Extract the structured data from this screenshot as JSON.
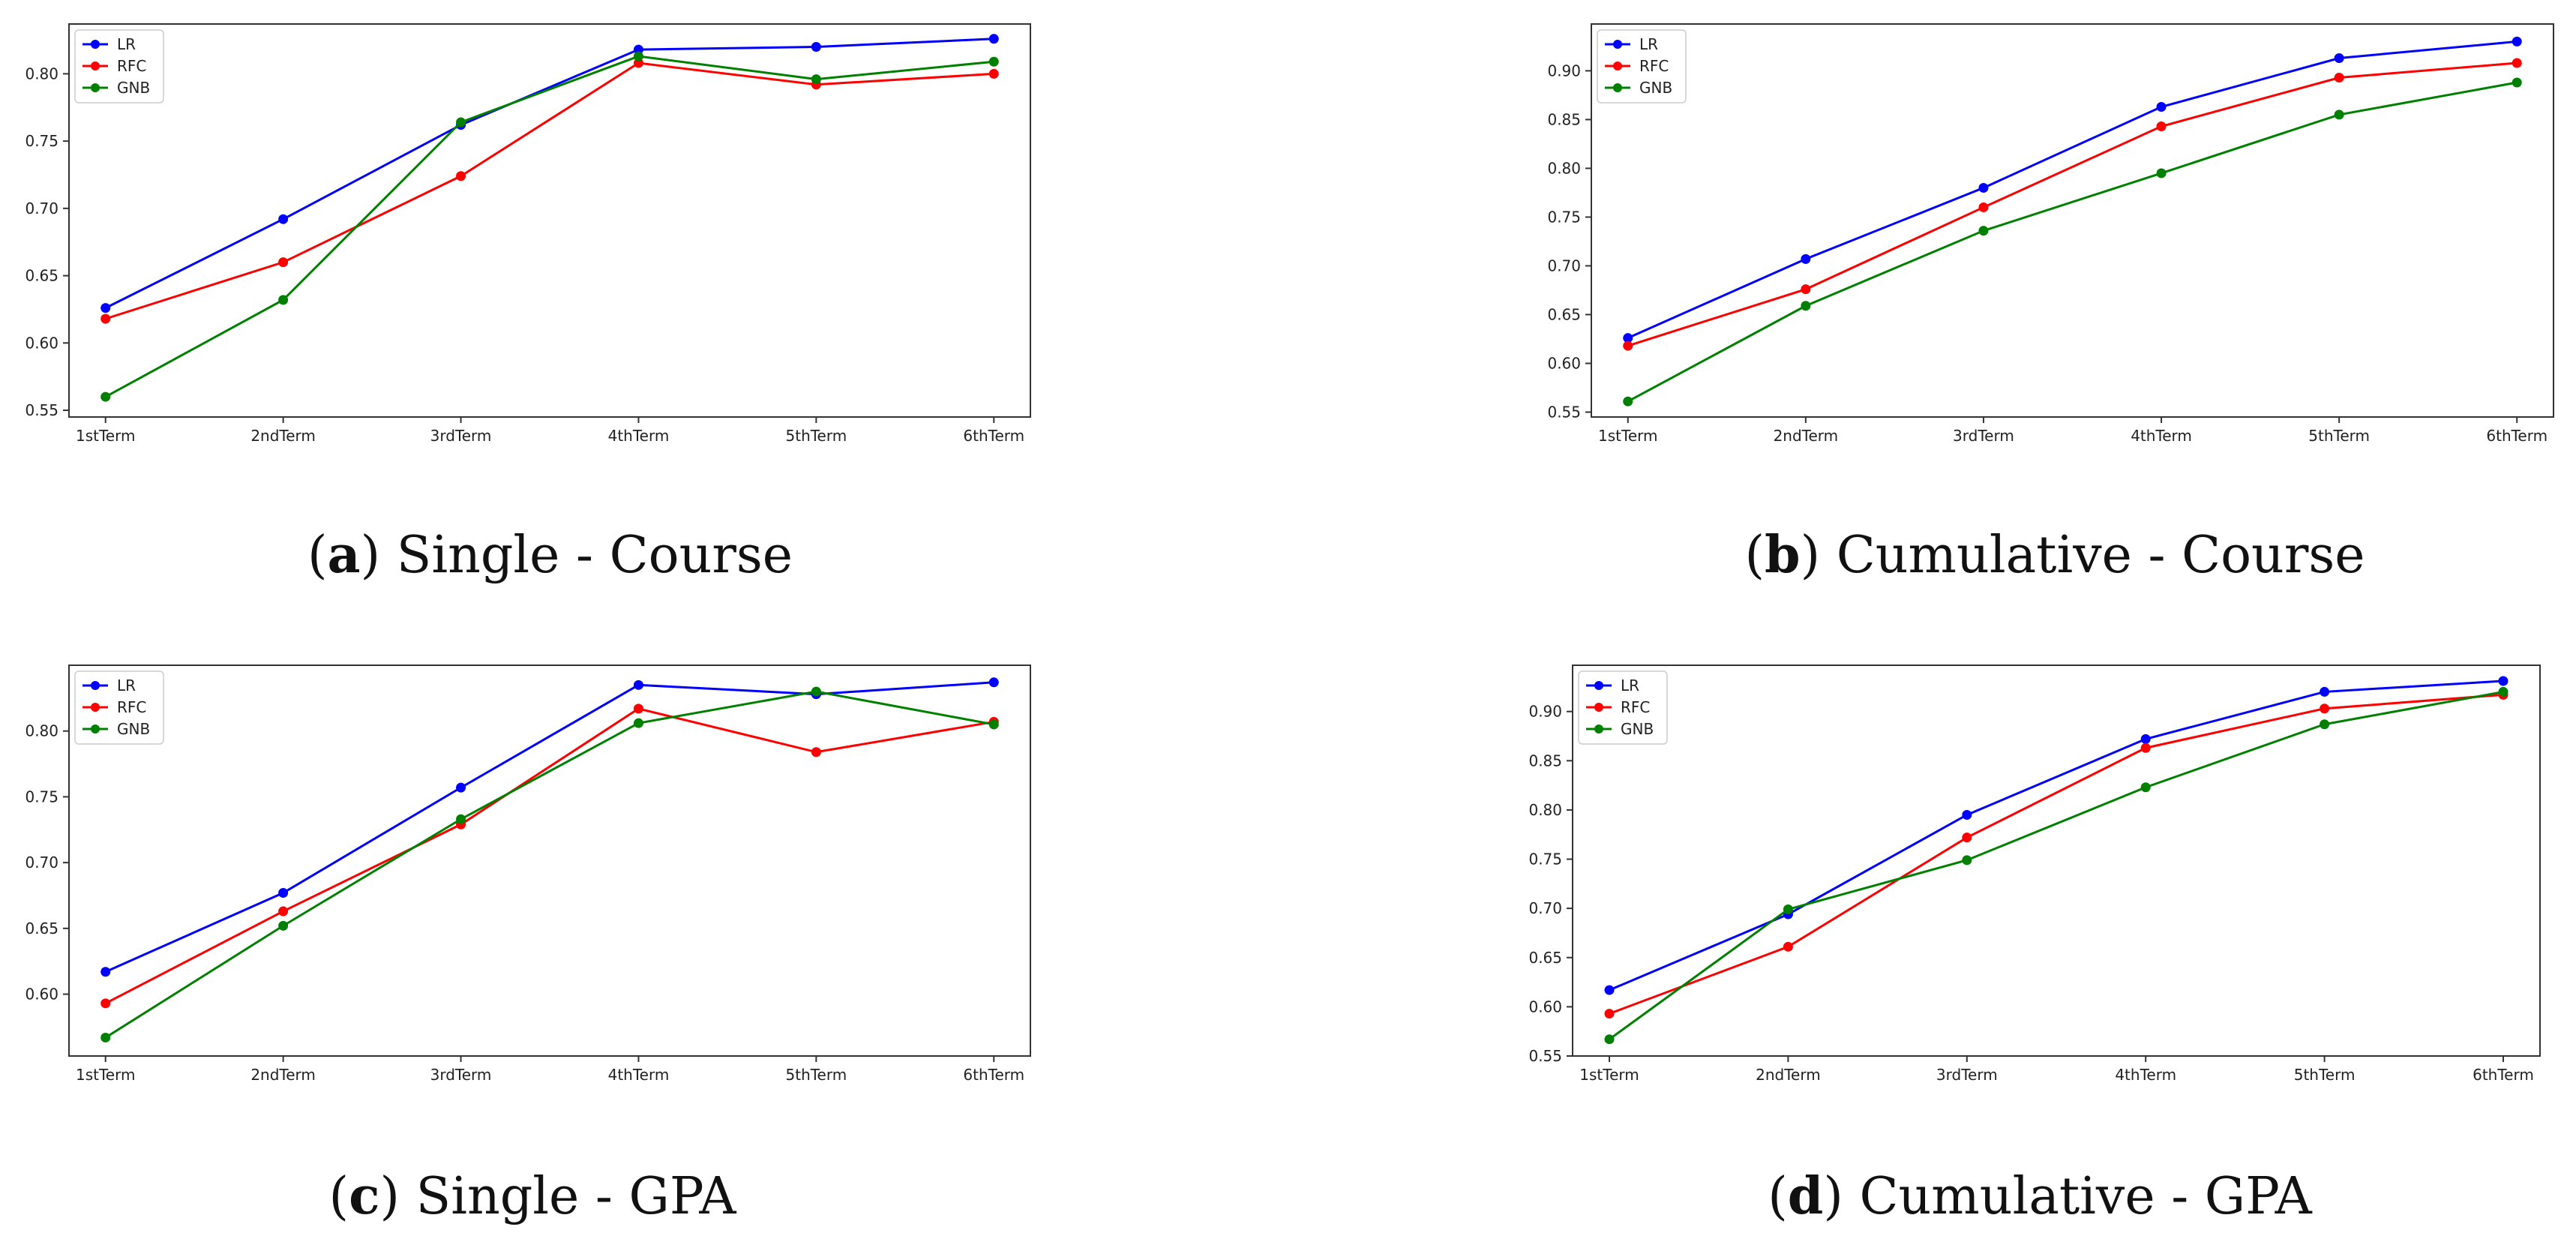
{
  "figure": {
    "captions": [
      {
        "letter": "a",
        "text": "Single - Course"
      },
      {
        "letter": "b",
        "text": "Cumulative - Course"
      },
      {
        "letter": "c",
        "text": "Single - GPA"
      },
      {
        "letter": "d",
        "text": "Cumulative - GPA"
      }
    ]
  },
  "colors": {
    "LR": "#0000ff",
    "RFC": "#ff0000",
    "GNB": "#008000"
  },
  "chart_data": [
    {
      "type": "line",
      "title": "(a) Single - Course",
      "categories": [
        "1stTerm",
        "2ndTerm",
        "3rdTerm",
        "4thTerm",
        "5thTerm",
        "6thTerm"
      ],
      "series": [
        {
          "name": "LR",
          "values": [
            0.626,
            0.692,
            0.762,
            0.818,
            0.82,
            0.826
          ]
        },
        {
          "name": "RFC",
          "values": [
            0.618,
            0.66,
            0.724,
            0.808,
            0.792,
            0.8
          ]
        },
        {
          "name": "GNB",
          "values": [
            0.56,
            0.632,
            0.764,
            0.813,
            0.796,
            0.809
          ]
        }
      ],
      "ylim": [
        0.545,
        0.837
      ],
      "yticks": [
        0.55,
        0.6,
        0.65,
        0.7,
        0.75,
        0.8
      ],
      "ytick_labels": [
        "0.55",
        "0.60",
        "0.65",
        "0.70",
        "0.75",
        "0.80"
      ],
      "legend": "top-left",
      "grid": false
    },
    {
      "type": "line",
      "title": "(b) Cumulative - Course",
      "categories": [
        "1stTerm",
        "2ndTerm",
        "3rdTerm",
        "4thTerm",
        "5thTerm",
        "6thTerm"
      ],
      "series": [
        {
          "name": "LR",
          "values": [
            0.626,
            0.707,
            0.78,
            0.863,
            0.913,
            0.93
          ]
        },
        {
          "name": "RFC",
          "values": [
            0.618,
            0.676,
            0.76,
            0.843,
            0.893,
            0.908
          ]
        },
        {
          "name": "GNB",
          "values": [
            0.561,
            0.659,
            0.736,
            0.795,
            0.855,
            0.888
          ]
        }
      ],
      "ylim": [
        0.545,
        0.948
      ],
      "yticks": [
        0.55,
        0.6,
        0.65,
        0.7,
        0.75,
        0.8,
        0.85,
        0.9
      ],
      "ytick_labels": [
        "0.55",
        "0.60",
        "0.65",
        "0.70",
        "0.75",
        "0.80",
        "0.85",
        "0.90"
      ],
      "legend": "top-left",
      "grid": false
    },
    {
      "type": "line",
      "title": "(c) Single - GPA",
      "categories": [
        "1stTerm",
        "2ndTerm",
        "3rdTerm",
        "4thTerm",
        "5thTerm",
        "6thTerm"
      ],
      "series": [
        {
          "name": "LR",
          "values": [
            0.617,
            0.677,
            0.757,
            0.835,
            0.828,
            0.837
          ]
        },
        {
          "name": "RFC",
          "values": [
            0.593,
            0.663,
            0.729,
            0.817,
            0.784,
            0.807
          ]
        },
        {
          "name": "GNB",
          "values": [
            0.567,
            0.652,
            0.733,
            0.806,
            0.83,
            0.805
          ]
        }
      ],
      "ylim": [
        0.553,
        0.85
      ],
      "yticks": [
        0.6,
        0.65,
        0.7,
        0.75,
        0.8
      ],
      "ytick_labels": [
        "0.60",
        "0.65",
        "0.70",
        "0.75",
        "0.80"
      ],
      "legend": "top-left",
      "grid": false
    },
    {
      "type": "line",
      "title": "(d) Cumulative - GPA",
      "categories": [
        "1stTerm",
        "2ndTerm",
        "3rdTerm",
        "4thTerm",
        "5thTerm",
        "6thTerm"
      ],
      "series": [
        {
          "name": "LR",
          "values": [
            0.617,
            0.694,
            0.795,
            0.872,
            0.92,
            0.931
          ]
        },
        {
          "name": "RFC",
          "values": [
            0.593,
            0.661,
            0.772,
            0.863,
            0.903,
            0.917
          ]
        },
        {
          "name": "GNB",
          "values": [
            0.567,
            0.699,
            0.749,
            0.823,
            0.887,
            0.92
          ]
        }
      ],
      "ylim": [
        0.55,
        0.947
      ],
      "yticks": [
        0.55,
        0.6,
        0.65,
        0.7,
        0.75,
        0.8,
        0.85,
        0.9
      ],
      "ytick_labels": [
        "0.55",
        "0.60",
        "0.65",
        "0.70",
        "0.75",
        "0.80",
        "0.85",
        "0.90"
      ],
      "legend": "top-left",
      "grid": false
    }
  ]
}
